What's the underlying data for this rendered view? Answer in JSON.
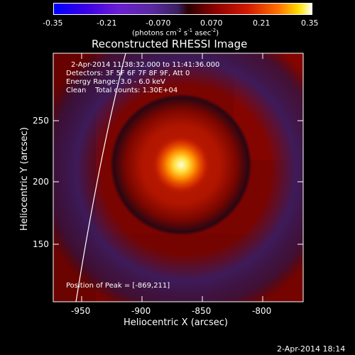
{
  "colorbar": {
    "ticks": [
      "-0.35",
      "-0.21",
      "-0.070",
      "0.070",
      "0.21",
      "0.35"
    ],
    "unit_label": "(photons cm",
    "unit_sup1": "-2",
    "unit_mid": " s",
    "unit_sup2": "-1",
    "unit_end": " asec",
    "unit_sup3": "-2",
    "unit_close": ")"
  },
  "title": "Reconstructed RHESSI Image",
  "info": {
    "time_range": "2-Apr-2014 11:38:32.000 to 11:41:36.000",
    "detectors": "Detectors: 3F 5F 6F 7F 8F 9F, Att 0",
    "energy": "Energy Range: 3.0 - 6.0 keV",
    "method": "Clean    Total counts: 1.30E+04"
  },
  "peak_text": "Position of Peak = [-869,211]",
  "axes": {
    "xlabel": "Heliocentric X (arcsec)",
    "ylabel": "Heliocentric Y (arcsec)",
    "xticks": [
      "-950",
      "-900",
      "-850",
      "-800"
    ],
    "yticks": [
      "150",
      "200",
      "250"
    ]
  },
  "footer_timestamp": "2-Apr-2014 18:14",
  "colors": {
    "background": "#000000",
    "text": "#ffffff",
    "limb": "#ffffff"
  }
}
